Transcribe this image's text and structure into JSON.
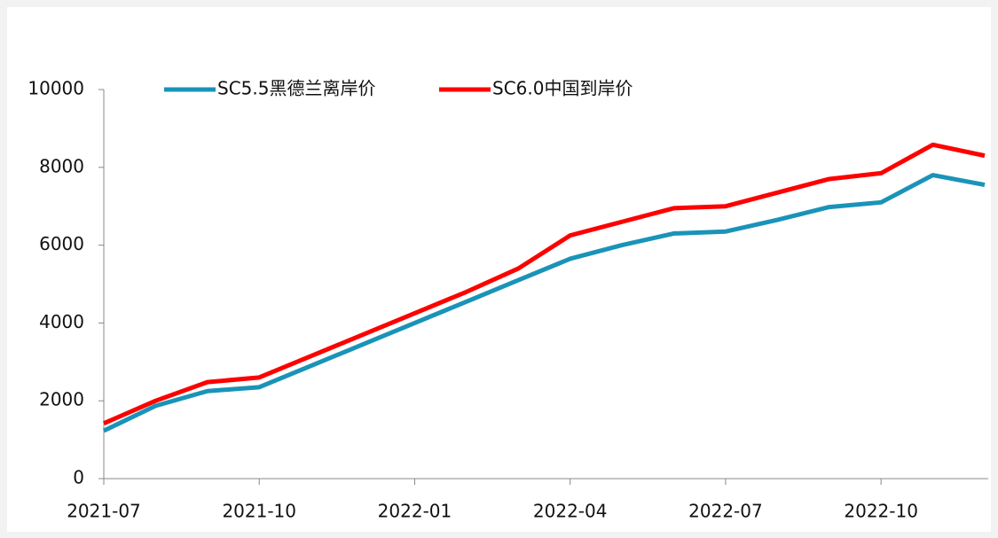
{
  "chart_data": {
    "type": "line",
    "categories": [
      "2021-07",
      null,
      null,
      "2021-10",
      null,
      null,
      "2022-01",
      null,
      null,
      "2022-04",
      null,
      null,
      "2022-07",
      null,
      null,
      "2022-10",
      null,
      null
    ],
    "series": [
      {
        "name": "SC5.5黑德兰离岸价",
        "color": "#1a93b8",
        "values": [
          1230,
          1870,
          2250,
          2350,
          2900,
          3450,
          4000,
          4550,
          5100,
          5650,
          6000,
          6300,
          6350,
          6650,
          6980,
          7100,
          7800,
          7550
        ]
      },
      {
        "name": "SC6.0中国到岸价",
        "color": "#ff0000",
        "values": [
          1420,
          2000,
          2480,
          2600,
          3150,
          3700,
          4250,
          4800,
          5400,
          6250,
          6600,
          6950,
          7000,
          7350,
          7700,
          7850,
          8580,
          8300
        ]
      }
    ],
    "ylim": [
      0,
      10000
    ],
    "yticks": [
      0,
      2000,
      4000,
      6000,
      8000,
      10000
    ],
    "legend": "top"
  }
}
